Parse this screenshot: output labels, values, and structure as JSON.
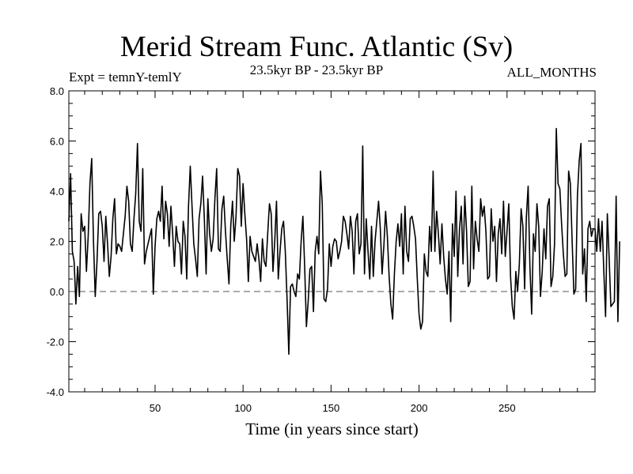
{
  "header": {
    "title": "Merid Stream Func. Atlantic (Sv)",
    "subtitle": "23.5kyr BP - 23.5kyr BP",
    "left_label": "Expt = temnY-temlY",
    "right_label": "ALL_MONTHS"
  },
  "chart_data": {
    "type": "line",
    "title": "Merid Stream Func. Atlantic (Sv)",
    "xlabel": "Time (in years since start)",
    "ylabel": "",
    "xlim": [
      1,
      300
    ],
    "ylim": [
      -4,
      8
    ],
    "x_ticks": [
      50,
      100,
      150,
      200,
      250
    ],
    "y_ticks": [
      -4,
      -2,
      0,
      2,
      4,
      6,
      8
    ],
    "y_tick_labels": [
      "-4.0",
      "-2.0",
      "0.0",
      "2.0",
      "4.0",
      "6.0",
      "8.0"
    ],
    "reference_line": {
      "y": 0,
      "style": "dashed"
    },
    "grid": false,
    "line_color": "#000000",
    "series": [
      {
        "x_start": 1,
        "x_step": 1,
        "values": [
          2.8,
          4.7,
          1.6,
          1.2,
          -0.5,
          1.0,
          -0.2,
          3.1,
          2.4,
          2.6,
          0.8,
          2.2,
          4.3,
          5.3,
          2.0,
          -0.2,
          1.2,
          3.1,
          3.2,
          2.6,
          1.2,
          3.0,
          1.9,
          0.6,
          1.4,
          2.9,
          3.7,
          1.5,
          1.9,
          1.8,
          1.6,
          2.3,
          3.0,
          4.2,
          3.6,
          1.9,
          1.6,
          2.9,
          3.9,
          5.9,
          2.8,
          2.4,
          4.9,
          1.1,
          1.6,
          1.9,
          2.2,
          2.5,
          -0.1,
          1.8,
          2.9,
          3.2,
          2.8,
          4.2,
          2.1,
          3.6,
          3.1,
          1.8,
          3.4,
          2.3,
          1.0,
          2.6,
          2.0,
          1.9,
          0.7,
          2.8,
          2.2,
          0.5,
          3.4,
          5.0,
          3.4,
          1.9,
          1.3,
          0.6,
          2.9,
          3.5,
          4.6,
          2.9,
          0.7,
          3.7,
          2.3,
          1.6,
          2.1,
          3.7,
          4.9,
          1.7,
          1.6,
          3.3,
          3.8,
          2.4,
          1.3,
          0.3,
          2.6,
          3.6,
          2.0,
          3.0,
          4.9,
          4.6,
          2.6,
          4.3,
          3.1,
          2.1,
          0.4,
          2.2,
          1.6,
          1.4,
          1.2,
          1.9,
          1.3,
          0.4,
          2.1,
          1.2,
          1.0,
          2.3,
          3.5,
          3.1,
          0.8,
          2.0,
          3.6,
          0.5,
          1.6,
          2.5,
          2.8,
          1.6,
          -0.3,
          -2.5,
          0.2,
          0.3,
          0.0,
          -0.2,
          0.7,
          0.5,
          2.0,
          3.0,
          1.0,
          -1.4,
          -0.4,
          0.9,
          1.0,
          -0.8,
          1.6,
          2.2,
          1.5,
          4.8,
          3.5,
          -0.3,
          -0.4,
          0.1,
          1.9,
          1.0,
          1.8,
          2.1,
          2.0,
          1.3,
          1.6,
          2.0,
          3.0,
          2.8,
          2.3,
          1.7,
          3.0,
          2.4,
          0.7,
          2.8,
          3.1,
          1.5,
          1.9,
          5.8,
          0.7,
          2.9,
          1.6,
          0.5,
          2.6,
          0.6,
          2.0,
          2.8,
          3.6,
          2.5,
          0.7,
          1.8,
          3.2,
          2.2,
          0.6,
          -0.5,
          -1.1,
          0.7,
          2.0,
          2.7,
          1.8,
          3.1,
          0.7,
          3.4,
          1.6,
          1.2,
          2.9,
          3.0,
          2.6,
          2.1,
          0.5,
          -0.9,
          -1.5,
          -1.2,
          1.5,
          0.8,
          0.6,
          2.6,
          1.6,
          4.8,
          1.6,
          3.2,
          2.3,
          1.1,
          2.7,
          1.4,
          0.5,
          -0.1,
          1.6,
          -1.2,
          2.7,
          1.4,
          4.0,
          0.6,
          2.5,
          3.4,
          1.1,
          3.8,
          2.4,
          0.2,
          0.4,
          4.2,
          0.9,
          2.8,
          2.1,
          1.6,
          3.7,
          3.0,
          3.4,
          2.4,
          0.5,
          0.6,
          3.3,
          2.0,
          2.6,
          0.4,
          2.3,
          2.9,
          1.5,
          3.6,
          1.4,
          2.4,
          3.5,
          0.6,
          -0.6,
          -1.1,
          0.8,
          0.0,
          1.1,
          3.3,
          2.6,
          0.1,
          3.0,
          4.2,
          1.0,
          -0.9,
          2.3,
          1.6,
          3.5,
          2.6,
          -0.2,
          0.8,
          2.5,
          1.3,
          3.4,
          3.7,
          0.2,
          0.6,
          1.9,
          6.5,
          4.3,
          4.1,
          2.7,
          1.5,
          0.6,
          0.7,
          4.8,
          4.3,
          2.0,
          -0.1,
          0.1,
          3.8,
          5.2,
          5.9,
          0.7,
          1.7,
          -0.4,
          2.5,
          2.8,
          2.2,
          2.5,
          2.5,
          1.6,
          2.9,
          1.6,
          2.8,
          0.8,
          -1.0,
          3.1,
          1.4,
          -0.6,
          -0.5,
          -0.4,
          3.8,
          -1.2,
          2.0
        ]
      }
    ]
  }
}
